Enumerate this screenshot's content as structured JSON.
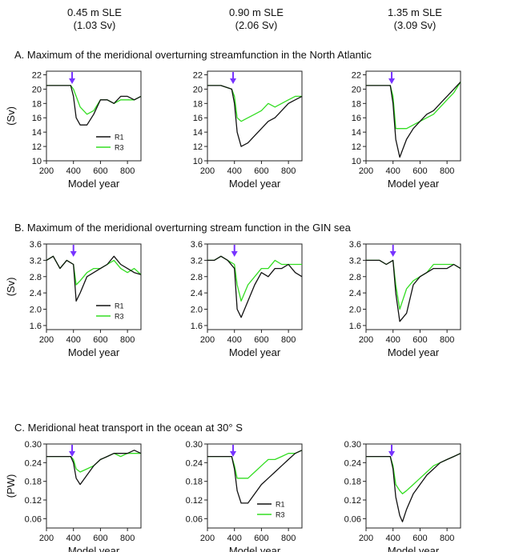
{
  "columns": [
    {
      "sle": "0.45 m SLE",
      "sv": "(1.03 Sv)"
    },
    {
      "sle": "0.90 m SLE",
      "sv": "(2.06 Sv)"
    },
    {
      "sle": "1.35 m SLE",
      "sv": "(3.09 Sv)"
    }
  ],
  "colors": {
    "R1": "#111111",
    "R3": "#33dd22",
    "arrow": "#7733ff"
  },
  "legend": [
    "R1",
    "R3"
  ],
  "xlabel": "Model year",
  "xticks": [
    200,
    400,
    600,
    800
  ],
  "xlim": [
    200,
    900
  ],
  "panels": [
    {
      "title": "A. Maximum of the meridional overturning streamfunction in the North Atlantic",
      "ylabel": "(Sv)",
      "ylim": [
        10,
        22.5
      ],
      "yticks": [
        "10",
        "12",
        "14",
        "16",
        "18",
        "20",
        "22"
      ],
      "ytickvals": [
        10,
        12,
        14,
        16,
        18,
        20,
        22
      ],
      "arrow_year": 390,
      "legend_in": 0
    },
    {
      "title": "B. Maximum of the meridional overturning stream function in the GIN sea",
      "ylabel": "(Sv)",
      "ylim": [
        1.5,
        3.6
      ],
      "yticks": [
        "1.6",
        "2.0",
        "2.4",
        "2.8",
        "3.2",
        "3.6"
      ],
      "ytickvals": [
        1.6,
        2.0,
        2.4,
        2.8,
        3.2,
        3.6
      ],
      "arrow_year": 400,
      "legend_in": 0
    },
    {
      "title": "C. Meridional heat transport in the ocean at 30° S",
      "ylabel": "(PW)",
      "ylim": [
        0.03,
        0.3
      ],
      "yticks": [
        "0.06",
        "0.12",
        "0.18",
        "0.24",
        "0.30"
      ],
      "ytickvals": [
        0.06,
        0.12,
        0.18,
        0.24,
        0.3
      ],
      "arrow_year": 390,
      "legend_in": 1
    }
  ],
  "chart_data": [
    {
      "type": "line",
      "title": "A. Maximum of the meridional overturning streamfunction in the North Atlantic",
      "subtitle": "0.45 m SLE (1.03 Sv)",
      "xlabel": "Model year",
      "ylabel": "(Sv)",
      "xlim": [
        200,
        900
      ],
      "ylim": [
        10,
        22.5
      ],
      "x": [
        200,
        300,
        380,
        400,
        420,
        450,
        500,
        550,
        600,
        650,
        700,
        750,
        800,
        850,
        900
      ],
      "series": [
        {
          "name": "R1",
          "values": [
            20.5,
            20.5,
            20.5,
            19,
            16,
            15,
            15,
            16.5,
            18.5,
            18.5,
            18,
            19,
            19,
            18.5,
            19
          ]
        },
        {
          "name": "R3",
          "values": [
            20.5,
            20.5,
            20.5,
            20,
            19,
            17.5,
            16.5,
            17,
            18.5,
            18.5,
            18,
            18.5,
            18.5,
            18.5,
            19
          ]
        }
      ]
    },
    {
      "type": "line",
      "title": "A. Maximum of the meridional overturning streamfunction in the North Atlantic",
      "subtitle": "0.90 m SLE (2.06 Sv)",
      "xlabel": "Model year",
      "ylabel": "",
      "xlim": [
        200,
        900
      ],
      "ylim": [
        10,
        22.5
      ],
      "x": [
        200,
        300,
        380,
        400,
        420,
        450,
        500,
        550,
        600,
        650,
        700,
        750,
        800,
        850,
        900
      ],
      "series": [
        {
          "name": "R1",
          "values": [
            20.5,
            20.5,
            20,
            18,
            14,
            12,
            12.5,
            13.5,
            14.5,
            15.5,
            16,
            17,
            18,
            18.5,
            19
          ]
        },
        {
          "name": "R3",
          "values": [
            20.5,
            20.5,
            20,
            19,
            16,
            15.5,
            16,
            16.5,
            17,
            18,
            17.5,
            18,
            18.5,
            19,
            19
          ]
        }
      ]
    },
    {
      "type": "line",
      "title": "A. Maximum of the meridional overturning streamfunction in the North Atlantic",
      "subtitle": "1.35 m SLE (3.09 Sv)",
      "xlabel": "Model year",
      "ylabel": "",
      "xlim": [
        200,
        900
      ],
      "ylim": [
        10,
        22.5
      ],
      "x": [
        200,
        300,
        380,
        400,
        420,
        450,
        500,
        550,
        600,
        650,
        700,
        750,
        800,
        850,
        900
      ],
      "series": [
        {
          "name": "R1",
          "values": [
            20.5,
            20.5,
            20.5,
            18,
            13,
            10.5,
            13,
            14.5,
            15.5,
            16.5,
            17,
            18,
            19,
            20,
            21
          ]
        },
        {
          "name": "R3",
          "values": [
            20.5,
            20.5,
            20.5,
            19,
            14.5,
            14.5,
            14.5,
            15,
            15.5,
            16,
            16.5,
            17.5,
            18.5,
            19.5,
            21
          ]
        }
      ]
    },
    {
      "type": "line",
      "title": "B. Maximum of the meridional overturning stream function in the GIN sea",
      "subtitle": "0.45 m SLE (1.03 Sv)",
      "xlabel": "Model year",
      "ylabel": "(Sv)",
      "xlim": [
        200,
        900
      ],
      "ylim": [
        1.5,
        3.6
      ],
      "x": [
        200,
        250,
        300,
        350,
        400,
        420,
        450,
        500,
        550,
        600,
        650,
        700,
        750,
        800,
        850,
        900
      ],
      "series": [
        {
          "name": "R1",
          "values": [
            3.2,
            3.3,
            3.0,
            3.2,
            3.1,
            2.2,
            2.4,
            2.8,
            2.9,
            3.0,
            3.1,
            3.3,
            3.1,
            3.0,
            2.9,
            2.85
          ]
        },
        {
          "name": "R3",
          "values": [
            3.2,
            3.3,
            3.0,
            3.2,
            3.1,
            2.6,
            2.7,
            2.9,
            3.0,
            3.0,
            3.1,
            3.2,
            3.0,
            2.9,
            3.0,
            2.85
          ]
        }
      ]
    },
    {
      "type": "line",
      "title": "B. Maximum of the meridional overturning stream function in the GIN sea",
      "subtitle": "0.90 m SLE (2.06 Sv)",
      "xlabel": "Model year",
      "ylabel": "",
      "xlim": [
        200,
        900
      ],
      "ylim": [
        1.5,
        3.6
      ],
      "x": [
        200,
        250,
        300,
        350,
        400,
        420,
        450,
        500,
        550,
        600,
        650,
        700,
        750,
        800,
        850,
        900
      ],
      "series": [
        {
          "name": "R1",
          "values": [
            3.2,
            3.2,
            3.3,
            3.2,
            3.0,
            2.0,
            1.8,
            2.2,
            2.6,
            2.9,
            2.8,
            3.0,
            3.0,
            3.1,
            2.9,
            2.8
          ]
        },
        {
          "name": "R3",
          "values": [
            3.2,
            3.2,
            3.3,
            3.2,
            3.1,
            2.6,
            2.2,
            2.6,
            2.8,
            3.0,
            3.0,
            3.2,
            3.1,
            3.1,
            3.1,
            3.1
          ]
        }
      ]
    },
    {
      "type": "line",
      "title": "B. Maximum of the meridional overturning stream function in the GIN sea",
      "subtitle": "1.35 m SLE (3.09 Sv)",
      "xlabel": "Model year",
      "ylabel": "",
      "xlim": [
        200,
        900
      ],
      "ylim": [
        1.5,
        3.6
      ],
      "x": [
        200,
        250,
        300,
        350,
        400,
        420,
        450,
        500,
        550,
        600,
        650,
        700,
        750,
        800,
        850,
        900
      ],
      "series": [
        {
          "name": "R1",
          "values": [
            3.2,
            3.2,
            3.2,
            3.1,
            3.2,
            2.4,
            1.7,
            1.9,
            2.6,
            2.8,
            2.9,
            3.0,
            3.0,
            3.0,
            3.1,
            3.0
          ]
        },
        {
          "name": "R3",
          "values": [
            3.2,
            3.2,
            3.2,
            3.1,
            3.2,
            2.6,
            2.0,
            2.5,
            2.7,
            2.8,
            2.9,
            3.1,
            3.1,
            3.1,
            3.1,
            3.0
          ]
        }
      ]
    },
    {
      "type": "line",
      "title": "C. Meridional heat transport in the ocean at 30° S",
      "subtitle": "0.45 m SLE (1.03 Sv)",
      "xlabel": "Model year",
      "ylabel": "(PW)",
      "xlim": [
        200,
        900
      ],
      "ylim": [
        0.03,
        0.3
      ],
      "x": [
        200,
        300,
        380,
        400,
        420,
        450,
        500,
        550,
        600,
        650,
        700,
        750,
        800,
        850,
        900
      ],
      "series": [
        {
          "name": "R1",
          "values": [
            0.26,
            0.26,
            0.26,
            0.24,
            0.19,
            0.17,
            0.2,
            0.23,
            0.25,
            0.26,
            0.27,
            0.27,
            0.27,
            0.28,
            0.27
          ]
        },
        {
          "name": "R3",
          "values": [
            0.26,
            0.26,
            0.26,
            0.25,
            0.22,
            0.21,
            0.22,
            0.23,
            0.25,
            0.26,
            0.27,
            0.26,
            0.27,
            0.27,
            0.27
          ]
        }
      ]
    },
    {
      "type": "line",
      "title": "C. Meridional heat transport in the ocean at 30° S",
      "subtitle": "0.90 m SLE (2.06 Sv)",
      "xlabel": "Model year",
      "ylabel": "",
      "xlim": [
        200,
        900
      ],
      "ylim": [
        0.03,
        0.3
      ],
      "x": [
        200,
        300,
        380,
        400,
        420,
        450,
        500,
        550,
        600,
        650,
        700,
        750,
        800,
        850,
        900
      ],
      "series": [
        {
          "name": "R1",
          "values": [
            0.26,
            0.26,
            0.26,
            0.22,
            0.15,
            0.11,
            0.11,
            0.14,
            0.17,
            0.19,
            0.21,
            0.23,
            0.25,
            0.27,
            0.28
          ]
        },
        {
          "name": "R3",
          "values": [
            0.26,
            0.26,
            0.26,
            0.23,
            0.19,
            0.19,
            0.19,
            0.21,
            0.23,
            0.25,
            0.25,
            0.26,
            0.27,
            0.27,
            0.28
          ]
        }
      ]
    },
    {
      "type": "line",
      "title": "C. Meridional heat transport in the ocean at 30° S",
      "subtitle": "1.35 m SLE (3.09 Sv)",
      "xlabel": "Model year",
      "ylabel": "",
      "xlim": [
        200,
        900
      ],
      "ylim": [
        0.03,
        0.3
      ],
      "x": [
        200,
        300,
        380,
        400,
        420,
        450,
        470,
        500,
        550,
        600,
        650,
        700,
        750,
        800,
        850,
        900
      ],
      "series": [
        {
          "name": "R1",
          "values": [
            0.26,
            0.26,
            0.26,
            0.22,
            0.13,
            0.07,
            0.05,
            0.09,
            0.14,
            0.17,
            0.2,
            0.22,
            0.24,
            0.25,
            0.26,
            0.27
          ]
        },
        {
          "name": "R3",
          "values": [
            0.26,
            0.26,
            0.26,
            0.23,
            0.17,
            0.15,
            0.14,
            0.15,
            0.17,
            0.19,
            0.21,
            0.23,
            0.24,
            0.25,
            0.26,
            0.27
          ]
        }
      ]
    }
  ]
}
